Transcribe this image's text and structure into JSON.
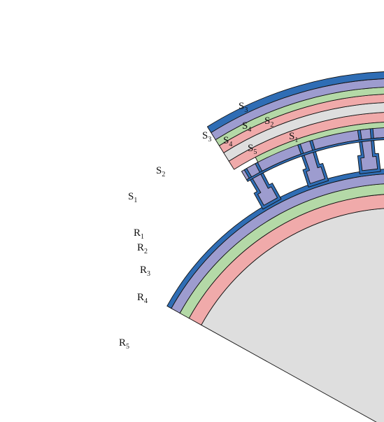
{
  "colors": {
    "blue": "#2f6db5",
    "lavender": "#9d9ccf",
    "green": "#b4d9a7",
    "pink": "#f0aaaa",
    "gray": "#dedede",
    "outline": "#111111",
    "background": "#ffffff"
  },
  "stator_labels": [
    {
      "base": "S",
      "sub": "1"
    },
    {
      "base": "S",
      "sub": "2"
    },
    {
      "base": "S",
      "sub": "3"
    },
    {
      "base": "S",
      "sub": "4"
    },
    {
      "base": "S",
      "sub": "5"
    },
    {
      "base": "S",
      "sub": "4"
    },
    {
      "base": "S",
      "sub": "3"
    },
    {
      "base": "S",
      "sub": "2"
    },
    {
      "base": "S",
      "sub": "1"
    }
  ],
  "rotor_labels": [
    {
      "base": "R",
      "sub": "1"
    },
    {
      "base": "R",
      "sub": "2"
    },
    {
      "base": "R",
      "sub": "3"
    },
    {
      "base": "R",
      "sub": "4"
    },
    {
      "base": "R",
      "sub": "5"
    }
  ]
}
